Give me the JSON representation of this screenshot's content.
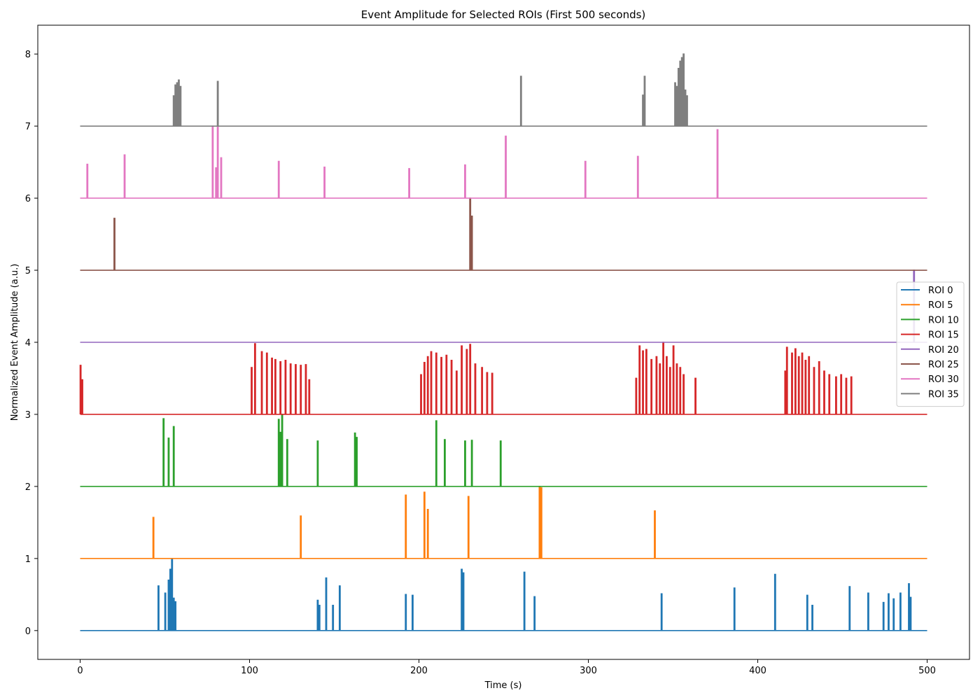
{
  "chart_data": {
    "type": "line",
    "title": "Event Amplitude for Selected ROIs (First 500 seconds)",
    "xlabel": "Time (s)",
    "ylabel": "Normalized Event Amplitude (a.u.)",
    "xlim": [
      -25,
      525
    ],
    "ylim": [
      -0.4,
      8.4
    ],
    "xticks": [
      0,
      100,
      200,
      300,
      400,
      500
    ],
    "yticks": [
      0,
      1,
      2,
      3,
      4,
      5,
      6,
      7,
      8
    ],
    "grid": false,
    "legend_position": "center-right",
    "series": [
      {
        "name": "ROI 0",
        "color": "#1f77b4",
        "baseline": 0,
        "events": [
          [
            46,
            0.62
          ],
          [
            50,
            0.52
          ],
          [
            52,
            0.7
          ],
          [
            53,
            0.85
          ],
          [
            54,
            1.0
          ],
          [
            55,
            0.45
          ],
          [
            56,
            0.4
          ],
          [
            140,
            0.42
          ],
          [
            141,
            0.35
          ],
          [
            145,
            0.73
          ],
          [
            149,
            0.35
          ],
          [
            153,
            0.62
          ],
          [
            192,
            0.5
          ],
          [
            196,
            0.49
          ],
          [
            225,
            0.85
          ],
          [
            226,
            0.8
          ],
          [
            262,
            0.81
          ],
          [
            268,
            0.47
          ],
          [
            343,
            0.51
          ],
          [
            386,
            0.59
          ],
          [
            410,
            0.78
          ],
          [
            429,
            0.49
          ],
          [
            432,
            0.35
          ],
          [
            454,
            0.61
          ],
          [
            465,
            0.52
          ],
          [
            474,
            0.39
          ],
          [
            477,
            0.51
          ],
          [
            480,
            0.44
          ],
          [
            484,
            0.52
          ],
          [
            489,
            0.65
          ],
          [
            490,
            0.46
          ]
        ]
      },
      {
        "name": "ROI 5",
        "color": "#ff7f0e",
        "baseline": 1,
        "events": [
          [
            43,
            1.57
          ],
          [
            130,
            1.59
          ],
          [
            192,
            1.88
          ],
          [
            203,
            1.92
          ],
          [
            205,
            1.68
          ],
          [
            229,
            1.86
          ],
          [
            271,
            2.0
          ],
          [
            272,
            1.98
          ],
          [
            339,
            1.66
          ]
        ]
      },
      {
        "name": "ROI 10",
        "color": "#2ca02c",
        "baseline": 2,
        "events": [
          [
            49,
            2.94
          ],
          [
            52,
            2.67
          ],
          [
            55,
            2.83
          ],
          [
            117,
            2.93
          ],
          [
            118,
            2.75
          ],
          [
            119,
            3.0
          ],
          [
            122,
            2.65
          ],
          [
            140,
            2.63
          ],
          [
            162,
            2.74
          ],
          [
            163,
            2.68
          ],
          [
            210,
            2.91
          ],
          [
            215,
            2.65
          ],
          [
            227,
            2.63
          ],
          [
            231,
            2.64
          ],
          [
            248,
            2.63
          ]
        ]
      },
      {
        "name": "ROI 15",
        "color": "#d62728",
        "baseline": 3,
        "events": [
          [
            0,
            3.68
          ],
          [
            1,
            3.48
          ],
          [
            101,
            3.65
          ],
          [
            103,
            3.98
          ],
          [
            107,
            3.87
          ],
          [
            110,
            3.85
          ],
          [
            113,
            3.78
          ],
          [
            115,
            3.76
          ],
          [
            118,
            3.73
          ],
          [
            121,
            3.75
          ],
          [
            124,
            3.7
          ],
          [
            127,
            3.69
          ],
          [
            130,
            3.68
          ],
          [
            133,
            3.69
          ],
          [
            135,
            3.48
          ],
          [
            201,
            3.55
          ],
          [
            203,
            3.72
          ],
          [
            205,
            3.8
          ],
          [
            207,
            3.87
          ],
          [
            210,
            3.85
          ],
          [
            213,
            3.79
          ],
          [
            216,
            3.82
          ],
          [
            219,
            3.75
          ],
          [
            222,
            3.6
          ],
          [
            225,
            3.95
          ],
          [
            228,
            3.9
          ],
          [
            230,
            3.97
          ],
          [
            233,
            3.7
          ],
          [
            237,
            3.65
          ],
          [
            240,
            3.58
          ],
          [
            243,
            3.57
          ],
          [
            328,
            3.5
          ],
          [
            330,
            3.95
          ],
          [
            332,
            3.88
          ],
          [
            334,
            3.9
          ],
          [
            337,
            3.76
          ],
          [
            340,
            3.8
          ],
          [
            342,
            3.7
          ],
          [
            344,
            4.0
          ],
          [
            346,
            3.8
          ],
          [
            348,
            3.65
          ],
          [
            350,
            3.95
          ],
          [
            352,
            3.7
          ],
          [
            354,
            3.65
          ],
          [
            356,
            3.55
          ],
          [
            363,
            3.5
          ],
          [
            416,
            3.6
          ],
          [
            417,
            3.93
          ],
          [
            420,
            3.85
          ],
          [
            422,
            3.91
          ],
          [
            424,
            3.8
          ],
          [
            426,
            3.85
          ],
          [
            428,
            3.75
          ],
          [
            430,
            3.8
          ],
          [
            433,
            3.65
          ],
          [
            436,
            3.73
          ],
          [
            439,
            3.6
          ],
          [
            442,
            3.55
          ],
          [
            446,
            3.52
          ],
          [
            449,
            3.55
          ],
          [
            452,
            3.5
          ],
          [
            455,
            3.52
          ]
        ]
      },
      {
        "name": "ROI 20",
        "color": "#9467bd",
        "baseline": 4,
        "events": [
          [
            492,
            5.0
          ]
        ]
      },
      {
        "name": "ROI 25",
        "color": "#8c564b",
        "baseline": 5,
        "events": [
          [
            20,
            5.72
          ],
          [
            230,
            6.0
          ],
          [
            231,
            5.75
          ]
        ]
      },
      {
        "name": "ROI 30",
        "color": "#e377c2",
        "baseline": 6,
        "events": [
          [
            4,
            6.47
          ],
          [
            26,
            6.6
          ],
          [
            78,
            7.0
          ],
          [
            80,
            6.42
          ],
          [
            81,
            7.0
          ],
          [
            83,
            6.56
          ],
          [
            117,
            6.51
          ],
          [
            144,
            6.43
          ],
          [
            194,
            6.41
          ],
          [
            227,
            6.46
          ],
          [
            251,
            6.86
          ],
          [
            298,
            6.51
          ],
          [
            329,
            6.58
          ],
          [
            376,
            6.95
          ]
        ]
      },
      {
        "name": "ROI 35",
        "color": "#7f7f7f",
        "baseline": 7,
        "events": [
          [
            55,
            7.42
          ],
          [
            56,
            7.57
          ],
          [
            57,
            7.6
          ],
          [
            58,
            7.64
          ],
          [
            59,
            7.55
          ],
          [
            81,
            7.62
          ],
          [
            260,
            7.69
          ],
          [
            332,
            7.43
          ],
          [
            333,
            7.69
          ],
          [
            351,
            7.6
          ],
          [
            352,
            7.55
          ],
          [
            353,
            7.8
          ],
          [
            354,
            7.9
          ],
          [
            355,
            7.95
          ],
          [
            356,
            8.0
          ],
          [
            357,
            7.5
          ],
          [
            358,
            7.42
          ]
        ]
      }
    ]
  }
}
